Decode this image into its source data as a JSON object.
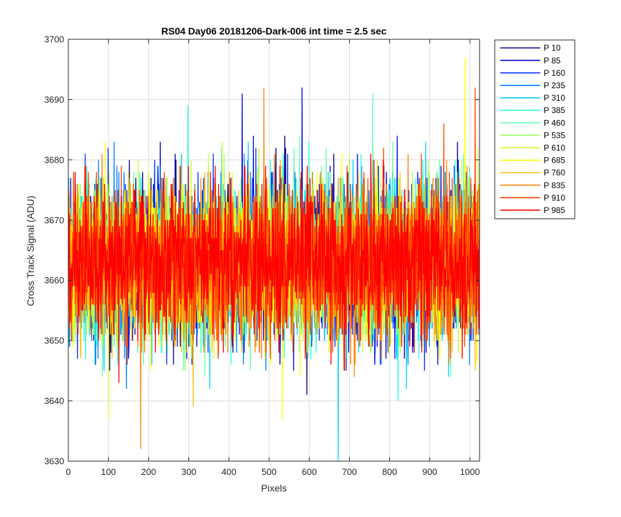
{
  "chart_data": {
    "type": "line",
    "title": "RS04 Day06 20181206-Dark-006 int time = 2.5 sec",
    "xlabel": "Pixels",
    "ylabel": "Cross Track Signal (ADU)",
    "xlim": [
      0,
      1024
    ],
    "ylim": [
      3630,
      3700
    ],
    "xticks": [
      "0",
      "100",
      "200",
      "300",
      "400",
      "500",
      "600",
      "700",
      "800",
      "900",
      "1000"
    ],
    "yticks": [
      "3630",
      "3640",
      "3650",
      "3660",
      "3670",
      "3680",
      "3690",
      "3700"
    ],
    "grid": true,
    "legend_position": "outside-right",
    "series": [
      {
        "name": "P 10",
        "color": "#00008f",
        "mean": 3663,
        "std": 6.2,
        "seed": 11
      },
      {
        "name": "P 85",
        "color": "#0000df",
        "mean": 3663,
        "std": 6.2,
        "seed": 23
      },
      {
        "name": "P 160",
        "color": "#0030ff",
        "mean": 3663,
        "std": 6.2,
        "seed": 37
      },
      {
        "name": "P 235",
        "color": "#0080ff",
        "mean": 3663,
        "std": 6.2,
        "seed": 41
      },
      {
        "name": "P 310",
        "color": "#00cfff",
        "mean": 3663,
        "std": 6.2,
        "seed": 53
      },
      {
        "name": "P 385",
        "color": "#20ffdf",
        "mean": 3663,
        "std": 6.2,
        "seed": 67
      },
      {
        "name": "P 460",
        "color": "#60ffaf",
        "mean": 3663,
        "std": 6.2,
        "seed": 71
      },
      {
        "name": "P 535",
        "color": "#9fff60",
        "mean": 3663,
        "std": 6.2,
        "seed": 83
      },
      {
        "name": "P 610",
        "color": "#cfff30",
        "mean": 3663,
        "std": 6.2,
        "seed": 97
      },
      {
        "name": "P 685",
        "color": "#ffff00",
        "mean": 3663,
        "std": 6.2,
        "seed": 101
      },
      {
        "name": "P 760",
        "color": "#ffbf00",
        "mean": 3663,
        "std": 6.2,
        "seed": 113
      },
      {
        "name": "P 835",
        "color": "#ff8000",
        "mean": 3663,
        "std": 6.2,
        "seed": 127
      },
      {
        "name": "P 910",
        "color": "#ff4000",
        "mean": 3663,
        "std": 6.2,
        "seed": 131
      },
      {
        "name": "P 985",
        "color": "#ff0000",
        "mean": 3663,
        "std": 6.2,
        "seed": 149
      }
    ],
    "notable_points": [
      {
        "series": "P 310",
        "x": 672,
        "y": 3630
      },
      {
        "series": "P 835",
        "x": 180,
        "y": 3632
      },
      {
        "series": "P 610",
        "x": 100,
        "y": 3637
      },
      {
        "series": "P 685",
        "x": 533,
        "y": 3637
      },
      {
        "series": "P 685",
        "x": 988,
        "y": 3697
      },
      {
        "series": "P 910",
        "x": 1013,
        "y": 3692
      },
      {
        "series": "P 835",
        "x": 487,
        "y": 3692
      },
      {
        "series": "P 85",
        "x": 433,
        "y": 3691
      },
      {
        "series": "P 85",
        "x": 582,
        "y": 3692
      },
      {
        "series": "P 460",
        "x": 758,
        "y": 3691
      }
    ]
  }
}
